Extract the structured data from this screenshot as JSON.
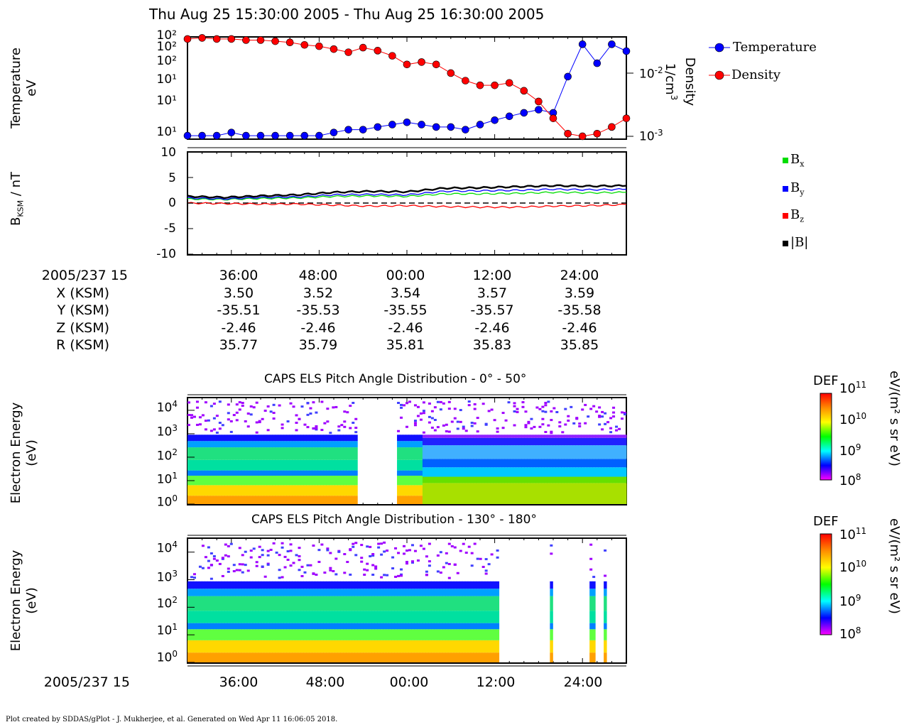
{
  "header": {
    "title": "Thu Aug 25 15:30:00 2005 - Thu Aug 25 16:30:00 2005"
  },
  "panel1": {
    "ylabel_left": "Temperature",
    "ylabel_left_unit": "eV",
    "ylabel_right": "Density",
    "ylabel_right_unit": "1/cm",
    "ylabel_right_unit_exp": "3",
    "left_ticks": [
      "10²",
      "10²",
      "10²",
      "10¹",
      "10¹",
      "10¹"
    ],
    "right_ticks": [
      {
        "base": "10",
        "exp": "-2"
      },
      {
        "base": "10",
        "exp": "-3"
      }
    ],
    "legend": [
      {
        "label": "Temperature",
        "color": "#0000ff"
      },
      {
        "label": "Density",
        "color": "#ff0000"
      }
    ]
  },
  "panel2": {
    "ylabel": "B",
    "ylabel_sub": "KSM",
    "ylabel_unit": " / nT",
    "ticks": [
      "10",
      "5",
      "0",
      "-5",
      "-10"
    ],
    "legend": [
      {
        "label": "B",
        "sub": "x",
        "color": "#00dd00"
      },
      {
        "label": "B",
        "sub": "y",
        "color": "#0000ff"
      },
      {
        "label": "B",
        "sub": "z",
        "color": "#ff0000"
      },
      {
        "label": "|B|",
        "sub": "",
        "color": "#000000"
      }
    ]
  },
  "ephemeris": {
    "row_labels": [
      "2005/237 15",
      "X (KSM)",
      "Y (KSM)",
      "Z (KSM)",
      "R (KSM)"
    ],
    "columns": [
      [
        "36:00",
        "3.50",
        "-35.51",
        "-2.46",
        "35.77"
      ],
      [
        "48:00",
        "3.52",
        "-35.53",
        "-2.46",
        "35.79"
      ],
      [
        "00:00",
        "3.54",
        "-35.55",
        "-2.46",
        "35.81"
      ],
      [
        "12:00",
        "3.57",
        "-35.57",
        "-2.46",
        "35.83"
      ],
      [
        "24:00",
        "3.59",
        "-35.58",
        "-2.46",
        "35.85"
      ]
    ]
  },
  "spec1": {
    "title": "CAPS ELS Pitch Angle Distribution - 0° - 50°"
  },
  "spec2": {
    "title": "CAPS ELS Pitch Angle Distribution - 130° - 180°"
  },
  "spec_common": {
    "ylabel": "Electron Energy",
    "ylabel_unit": "(eV)",
    "ticks": [
      {
        "base": "10",
        "exp": "4"
      },
      {
        "base": "10",
        "exp": "3"
      },
      {
        "base": "10",
        "exp": "2"
      },
      {
        "base": "10",
        "exp": "1"
      },
      {
        "base": "10",
        "exp": "0"
      }
    ],
    "colorbar": {
      "label": "DEF",
      "unit": "eV/(m² s sr eV)",
      "ticks": [
        {
          "base": "10",
          "exp": "11"
        },
        {
          "base": "10",
          "exp": "10"
        },
        {
          "base": "10",
          "exp": "9"
        },
        {
          "base": "10",
          "exp": "8"
        }
      ],
      "colors": [
        "#ff0000",
        "#ff8c00",
        "#ffff00",
        "#00ff00",
        "#00ffff",
        "#0000ff",
        "#ff00ff"
      ]
    }
  },
  "bottom_axis": {
    "label": "2005/237 15",
    "ticks": [
      "36:00",
      "48:00",
      "00:00",
      "12:00",
      "24:00"
    ]
  },
  "footer": {
    "text": "Plot created by SDDAS/gPlot - J. Mukherjee, et al.  Generated on Wed Apr 11 16:06:05 2018."
  },
  "chart_data": [
    {
      "type": "scatter",
      "title": "Thu Aug 25 15:30:00 2005 - Thu Aug 25 16:30:00 2005",
      "xlabel": "",
      "x_ticks": [
        "36:00",
        "48:00",
        "00:00",
        "12:00",
        "24:00"
      ],
      "x_minutes": [
        0,
        2,
        4,
        6,
        8,
        10,
        12,
        14,
        16,
        18,
        20,
        22,
        24,
        26,
        28,
        30,
        32,
        34,
        36,
        38,
        40,
        42,
        44,
        46,
        48,
        50,
        52,
        54,
        56,
        58,
        60
      ],
      "series": [
        {
          "name": "Temperature",
          "color": "#0000ff",
          "axis": "left",
          "ylabel": "Temperature eV",
          "values": [
            10,
            10,
            10,
            11,
            10,
            10,
            10,
            10,
            10,
            10,
            11,
            12,
            12,
            13,
            14,
            15,
            14,
            13,
            13,
            12,
            14,
            16,
            18,
            20,
            22,
            20,
            60,
            160,
            90,
            160,
            130
          ]
        },
        {
          "name": "Density",
          "color": "#ff0000",
          "axis": "right",
          "ylabel": "Density 1/cm3",
          "values": [
            0.028,
            0.029,
            0.028,
            0.028,
            0.027,
            0.027,
            0.026,
            0.025,
            0.023,
            0.022,
            0.02,
            0.018,
            0.021,
            0.019,
            0.016,
            0.012,
            0.013,
            0.012,
            0.009,
            0.007,
            0.006,
            0.006,
            0.0065,
            0.005,
            0.0035,
            0.002,
            0.0012,
            0.0011,
            0.0012,
            0.0015,
            0.002
          ]
        }
      ]
    },
    {
      "type": "line",
      "ylabel": "B_KSM / nT",
      "ylim": [
        -10,
        10
      ],
      "x_ticks": [
        "36:00",
        "48:00",
        "00:00",
        "12:00",
        "24:00"
      ],
      "x_minutes": [
        0,
        5,
        10,
        15,
        20,
        25,
        30,
        35,
        40,
        45,
        50,
        55,
        60
      ],
      "series": [
        {
          "name": "Bx",
          "color": "#00dd00",
          "values": [
            0.8,
            0.7,
            0.9,
            1.0,
            1.3,
            1.4,
            1.3,
            1.8,
            1.8,
            1.9,
            2.1,
            2.0,
            2.1
          ]
        },
        {
          "name": "By",
          "color": "#0000ff",
          "values": [
            1.0,
            0.8,
            1.1,
            1.2,
            1.6,
            1.7,
            1.6,
            2.3,
            2.4,
            2.5,
            2.7,
            2.6,
            2.7
          ]
        },
        {
          "name": "Bz",
          "color": "#ff0000",
          "values": [
            0.0,
            -0.1,
            -0.2,
            -0.2,
            -0.4,
            -0.6,
            -0.5,
            -0.7,
            -0.8,
            -0.8,
            -0.6,
            -0.5,
            -0.3
          ]
        },
        {
          "name": "|B|",
          "color": "#000000",
          "values": [
            1.3,
            1.1,
            1.4,
            1.6,
            2.1,
            2.3,
            2.2,
            2.9,
            3.0,
            3.2,
            3.4,
            3.3,
            3.4
          ]
        }
      ]
    },
    {
      "type": "heatmap",
      "title": "CAPS ELS Pitch Angle Distribution - 0° - 50°",
      "ylabel": "Electron Energy (eV)",
      "y_scale": "log",
      "ylim": [
        1,
        20000
      ],
      "colorbar_label": "DEF eV/(m² s sr eV)",
      "colorbar_range": [
        100000000.0,
        100000000000.0
      ]
    },
    {
      "type": "heatmap",
      "title": "CAPS ELS Pitch Angle Distribution - 130° - 180°",
      "ylabel": "Electron Energy (eV)",
      "y_scale": "log",
      "ylim": [
        1,
        20000
      ],
      "colorbar_label": "DEF eV/(m² s sr eV)",
      "colorbar_range": [
        100000000.0,
        100000000000.0
      ]
    }
  ]
}
